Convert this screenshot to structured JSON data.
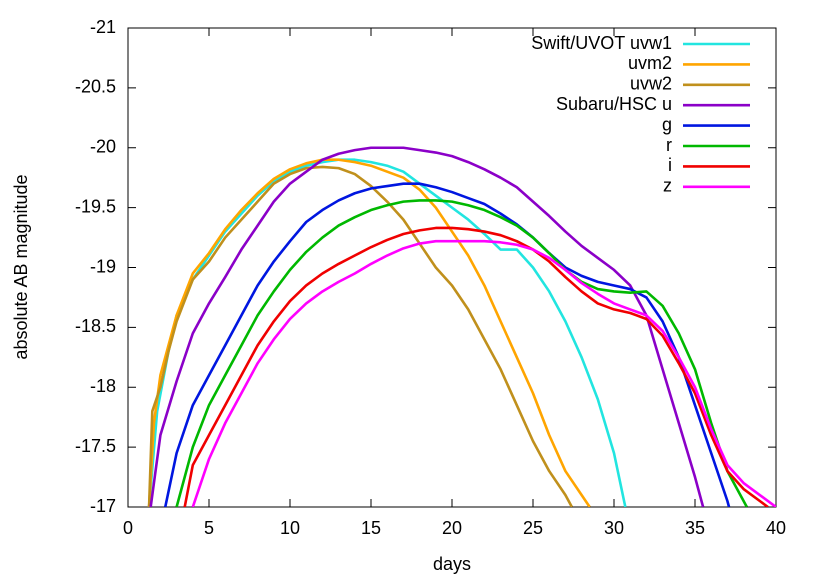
{
  "chart_data": {
    "type": "line",
    "xlabel": "days",
    "ylabel": "absolute AB magnitude",
    "xlim": [
      0,
      40
    ],
    "xticks": [
      0,
      5,
      10,
      15,
      20,
      25,
      30,
      35,
      40
    ],
    "ylim": [
      -17,
      -21
    ],
    "yticks": [
      -21,
      -20.5,
      -20,
      -19.5,
      -19,
      -18.5,
      -18,
      -17.5,
      -17
    ],
    "legend": "top-right",
    "series": [
      {
        "name": "Swift/UVOT uvw1",
        "color": "#22e5e0",
        "x": [
          1.3,
          1.8,
          2.5,
          3,
          4,
          5,
          6,
          7,
          8,
          9,
          10,
          11,
          12,
          13,
          14,
          15,
          16,
          17,
          18,
          19,
          20,
          21,
          22,
          23,
          24,
          25,
          26,
          27,
          28,
          29,
          30,
          30.7
        ],
        "values": [
          -17,
          -17.8,
          -18.3,
          -18.6,
          -18.9,
          -19.1,
          -19.3,
          -19.45,
          -19.6,
          -19.72,
          -19.8,
          -19.85,
          -19.88,
          -19.9,
          -19.9,
          -19.88,
          -19.85,
          -19.8,
          -19.7,
          -19.6,
          -19.5,
          -19.4,
          -19.28,
          -19.15,
          -19.15,
          -19.0,
          -18.8,
          -18.55,
          -18.25,
          -17.9,
          -17.45,
          -17
        ]
      },
      {
        "name": "uvm2",
        "color": "#ffa500",
        "x": [
          1.3,
          1.6,
          2,
          3,
          4,
          5,
          6,
          7,
          8,
          9,
          10,
          11,
          12,
          13,
          14,
          15,
          16,
          17,
          18,
          19,
          20,
          21,
          22,
          23,
          24,
          25,
          26,
          27,
          28,
          28.5
        ],
        "values": [
          -17,
          -17.7,
          -18.1,
          -18.6,
          -18.95,
          -19.12,
          -19.32,
          -19.48,
          -19.62,
          -19.74,
          -19.82,
          -19.87,
          -19.9,
          -19.9,
          -19.88,
          -19.85,
          -19.8,
          -19.75,
          -19.65,
          -19.5,
          -19.3,
          -19.1,
          -18.85,
          -18.55,
          -18.25,
          -17.95,
          -17.6,
          -17.3,
          -17.1,
          -17
        ]
      },
      {
        "name": "uvw2",
        "color": "#c0901c",
        "x": [
          1.3,
          1.5,
          2,
          2.5,
          3,
          4,
          5,
          6,
          7,
          8,
          9,
          10,
          11,
          12,
          13,
          14,
          15,
          16,
          17,
          18,
          19,
          20,
          21,
          22,
          23,
          24,
          25,
          26,
          27,
          27.4
        ],
        "values": [
          -17,
          -17.8,
          -18.0,
          -18.3,
          -18.55,
          -18.9,
          -19.05,
          -19.25,
          -19.4,
          -19.55,
          -19.7,
          -19.78,
          -19.83,
          -19.84,
          -19.83,
          -19.78,
          -19.68,
          -19.55,
          -19.4,
          -19.2,
          -19.0,
          -18.85,
          -18.65,
          -18.4,
          -18.15,
          -17.85,
          -17.55,
          -17.3,
          -17.1,
          -17
        ]
      },
      {
        "name": "Subaru/HSC u",
        "color": "#8b00c8",
        "x": [
          1.4,
          2,
          3,
          4,
          5,
          6,
          7,
          8,
          9,
          10,
          11,
          12,
          13,
          14,
          15,
          16,
          17,
          18,
          19,
          20,
          21,
          22,
          23,
          24,
          25,
          26,
          27,
          28,
          29,
          30,
          31,
          32,
          33,
          34,
          35,
          35.5
        ],
        "values": [
          -17,
          -17.6,
          -18.05,
          -18.45,
          -18.7,
          -18.92,
          -19.15,
          -19.35,
          -19.55,
          -19.7,
          -19.8,
          -19.9,
          -19.95,
          -19.98,
          -20.0,
          -20.0,
          -20.0,
          -19.98,
          -19.96,
          -19.93,
          -19.88,
          -19.82,
          -19.75,
          -19.67,
          -19.55,
          -19.43,
          -19.3,
          -19.18,
          -19.08,
          -18.98,
          -18.85,
          -18.6,
          -18.15,
          -17.7,
          -17.25,
          -17
        ]
      },
      {
        "name": "g",
        "color": "#0016e0",
        "x": [
          2.3,
          3,
          4,
          5,
          6,
          7,
          8,
          9,
          10,
          11,
          12,
          13,
          14,
          15,
          16,
          17,
          18,
          19,
          20,
          21,
          22,
          23,
          24,
          25,
          26,
          27,
          28,
          29,
          30,
          31,
          32,
          33,
          34,
          35,
          36,
          37,
          37.1
        ],
        "values": [
          -17,
          -17.45,
          -17.85,
          -18.1,
          -18.35,
          -18.6,
          -18.85,
          -19.05,
          -19.22,
          -19.38,
          -19.48,
          -19.56,
          -19.62,
          -19.66,
          -19.68,
          -19.7,
          -19.7,
          -19.67,
          -19.63,
          -19.58,
          -19.53,
          -19.45,
          -19.36,
          -19.25,
          -19.12,
          -19.0,
          -18.93,
          -18.88,
          -18.85,
          -18.82,
          -18.75,
          -18.55,
          -18.25,
          -17.85,
          -17.45,
          -17.05,
          -17
        ]
      },
      {
        "name": "r",
        "color": "#00b800",
        "x": [
          3,
          4,
          5,
          6,
          7,
          8,
          9,
          10,
          11,
          12,
          13,
          14,
          15,
          16,
          17,
          18,
          19,
          20,
          21,
          22,
          23,
          24,
          25,
          26,
          27,
          28,
          29,
          30,
          31,
          32,
          33,
          34,
          35,
          36,
          37,
          38,
          38.2
        ],
        "values": [
          -17,
          -17.5,
          -17.85,
          -18.1,
          -18.35,
          -18.6,
          -18.8,
          -18.98,
          -19.13,
          -19.25,
          -19.35,
          -19.42,
          -19.48,
          -19.52,
          -19.55,
          -19.56,
          -19.56,
          -19.55,
          -19.52,
          -19.48,
          -19.42,
          -19.35,
          -19.25,
          -19.12,
          -18.98,
          -18.88,
          -18.82,
          -18.8,
          -18.79,
          -18.8,
          -18.68,
          -18.45,
          -18.15,
          -17.7,
          -17.3,
          -17.05,
          -17
        ]
      },
      {
        "name": "i",
        "color": "#f00000",
        "x": [
          3.5,
          4,
          5,
          6,
          7,
          8,
          9,
          10,
          11,
          12,
          13,
          14,
          15,
          16,
          17,
          18,
          19,
          20,
          21,
          22,
          23,
          24,
          25,
          26,
          27,
          28,
          29,
          30,
          31,
          32,
          33,
          34,
          35,
          36,
          37,
          38,
          39,
          39.5
        ],
        "values": [
          -17,
          -17.35,
          -17.6,
          -17.85,
          -18.1,
          -18.35,
          -18.55,
          -18.72,
          -18.85,
          -18.95,
          -19.03,
          -19.1,
          -19.17,
          -19.23,
          -19.28,
          -19.31,
          -19.33,
          -19.33,
          -19.32,
          -19.3,
          -19.27,
          -19.22,
          -19.15,
          -19.05,
          -18.92,
          -18.8,
          -18.7,
          -18.65,
          -18.62,
          -18.57,
          -18.43,
          -18.2,
          -17.95,
          -17.6,
          -17.3,
          -17.15,
          -17.05,
          -17
        ]
      },
      {
        "name": "z",
        "color": "#ff00ff",
        "x": [
          4,
          5,
          6,
          7,
          8,
          9,
          10,
          11,
          12,
          13,
          14,
          15,
          16,
          17,
          18,
          19,
          20,
          21,
          22,
          23,
          24,
          25,
          26,
          27,
          28,
          29,
          30,
          31,
          32,
          33,
          34,
          35,
          36,
          37,
          38,
          39,
          40
        ],
        "values": [
          -17,
          -17.4,
          -17.7,
          -17.95,
          -18.2,
          -18.4,
          -18.57,
          -18.7,
          -18.8,
          -18.88,
          -18.95,
          -19.03,
          -19.1,
          -19.16,
          -19.2,
          -19.22,
          -19.22,
          -19.22,
          -19.22,
          -19.21,
          -19.19,
          -19.15,
          -19.08,
          -18.98,
          -18.87,
          -18.78,
          -18.7,
          -18.65,
          -18.6,
          -18.47,
          -18.25,
          -18.0,
          -17.65,
          -17.35,
          -17.2,
          -17.1,
          -17.0
        ]
      }
    ]
  }
}
